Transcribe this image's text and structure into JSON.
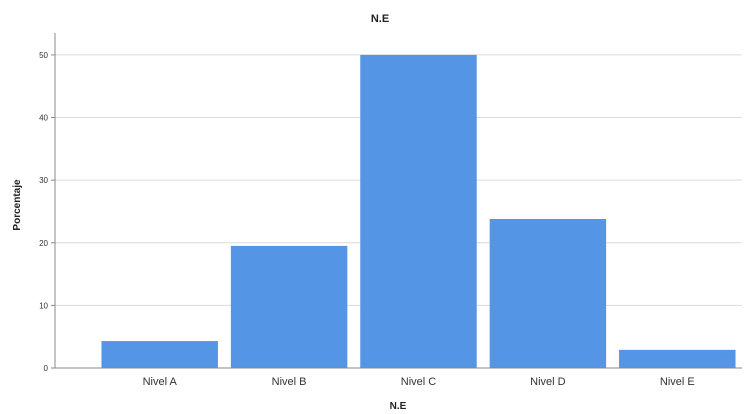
{
  "chart_data": {
    "type": "bar",
    "title": "N.E",
    "xlabel": "N.E",
    "ylabel": "Porcentaje",
    "categories": [
      "Nivel A",
      "Nivel B",
      "Nivel C",
      "Nivel D",
      "Nivel E"
    ],
    "values": [
      4.3,
      19.5,
      50.0,
      23.8,
      2.9
    ],
    "ylim": [
      0,
      53.5
    ],
    "yticks": [
      0,
      10,
      20,
      30,
      40,
      50
    ],
    "grid": true,
    "bar_color": "#5595e5"
  }
}
